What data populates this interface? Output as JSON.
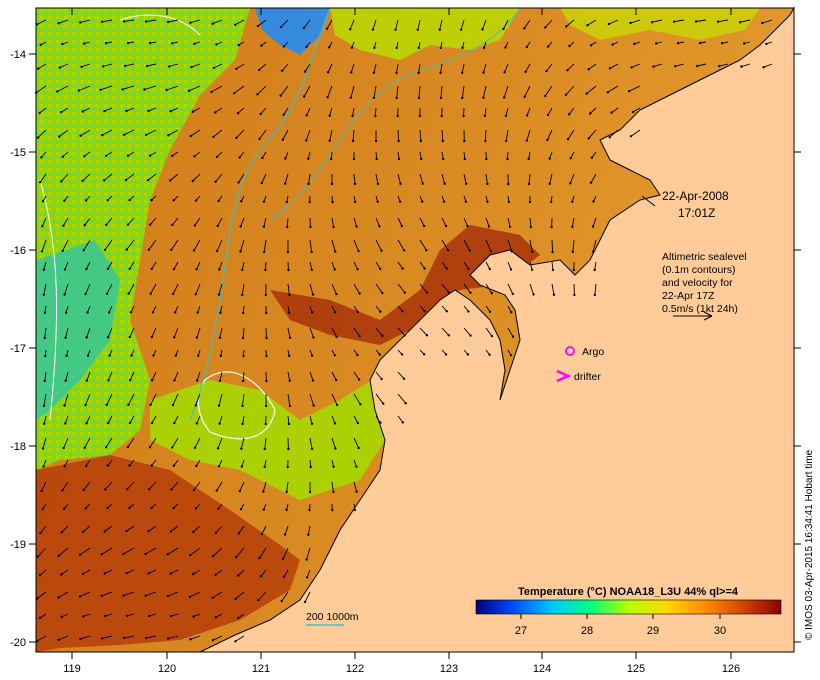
{
  "map": {
    "date": "22-Apr-2008",
    "time": "17:01Z",
    "lon_ticks": [
      "119",
      "120",
      "121",
      "122",
      "123",
      "124",
      "125",
      "126"
    ],
    "lat_ticks": [
      "-14",
      "-15",
      "-16",
      "-17",
      "-18",
      "-19",
      "-20"
    ],
    "altimetry_lines": [
      "Altimetric sealevel",
      "(0.1m contours)",
      "and velocity for",
      "22-Apr 17Z",
      "0.5m/s (1kt 24h)"
    ],
    "legend": {
      "argo_label": "Argo",
      "drifter_label": "drifter",
      "argo_color": "#ff00ff",
      "drifter_color": "#ff00ff"
    },
    "isobath_label": "200  1000m",
    "isobath_color": "#40c0c0",
    "land_color": "#ffcc99",
    "colorbar": {
      "title": "Temperature (°C) NOAA18_L3U 44% ql>=4",
      "ticks": [
        "27",
        "28",
        "29",
        "30"
      ],
      "colors": [
        "#000080",
        "#0050ff",
        "#00c8ff",
        "#00ff80",
        "#b4ff00",
        "#ffd700",
        "#ff8c00",
        "#d24600",
        "#8b0000"
      ]
    },
    "credit": "© IMOS 03-Apr-2015 16:34:41 Hobart time"
  }
}
